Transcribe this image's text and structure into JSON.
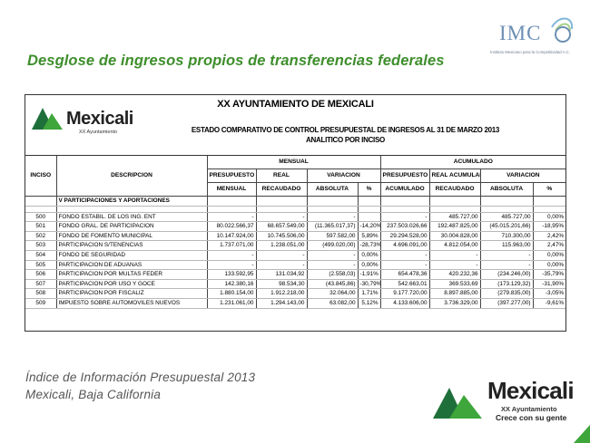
{
  "slide": {
    "title": "Desglose de ingresos propios de transferencias federales",
    "footer_line1": "Índice de Información Presupuestal 2013",
    "footer_line2": "Mexicali, Baja California"
  },
  "imco_logo": {
    "name": "IMC",
    "tagline": "Instituto Mexicano para la Competitividad A.C."
  },
  "mexicali_logo": {
    "name": "Mexicali",
    "subtitle": "XX Ayuntamiento",
    "slogan": "Crece con su gente"
  },
  "document": {
    "title": "XX AYUNTAMIENTO DE MEXICALI",
    "logo_name": "Mexicali",
    "logo_sub": "XX Ayuntamiento",
    "subtitle1": "ESTADO COMPARATIVO DE CONTROL PRESUPUESTAL DE INGRESOS AL 31 DE MARZO 2013",
    "subtitle2": "ANALITICO POR INCISO"
  },
  "table": {
    "header": {
      "inciso": "INCISO",
      "descripcion": "DESCRIPCION",
      "mensual": "MENSUAL",
      "acumulado": "ACUMULADO",
      "presupuesto": "PRESUPUESTO",
      "real": "REAL",
      "variacion": "VARIACION",
      "presupuesto_acum": "PRESUPUESTO",
      "real_acumulado": "REAL ACUMULADO",
      "variacion_acum": "VARIACION",
      "sub_mensual": "MENSUAL",
      "recaudado": "RECAUDADO",
      "absoluta": "ABSOLUTA",
      "pct": "%",
      "acumulado_sub": "ACUMULADO",
      "recaudado_acum": "RECAUDADO",
      "absoluta_acum": "ABSOLUTA",
      "pct_acum": "%"
    },
    "section_title": "V PARTICIPACIONES Y APORTACIONES",
    "rows": [
      {
        "inciso": "500",
        "desc": "FONDO ESTABIL. DE LOS ING. ENT",
        "pres_m": "-",
        "real_m": "-",
        "var_abs": "-",
        "var_pct": "",
        "pres_a": "-",
        "real_a": "485.727,00",
        "var_abs_a": "485.727,00",
        "var_pct_a": "0,00%"
      },
      {
        "inciso": "501",
        "desc": "FONDO GRAL. DE PARTICIPACION",
        "pres_m": "80.022.566,37",
        "real_m": "68.657.549,00",
        "var_abs": "(11.365.017,37)",
        "var_pct": "-14,20%",
        "pres_a": "237.503.026,66",
        "real_a": "192.487.825,00",
        "var_abs_a": "(45.015.201,66)",
        "var_pct_a": "-18,95%"
      },
      {
        "inciso": "502",
        "desc": "FONDO DE FOMENTO MUNICIPAL",
        "pres_m": "10.147.924,00",
        "real_m": "10.745.506,00",
        "var_abs": "597.582,00",
        "var_pct": "5,89%",
        "pres_a": "29.294.528,00",
        "real_a": "30.004.828,00",
        "var_abs_a": "710.300,00",
        "var_pct_a": "2,42%"
      },
      {
        "inciso": "503",
        "desc": "PARTICIPACION S/TENENCIAS",
        "pres_m": "1.737.071,00",
        "real_m": "1.238.051,00",
        "var_abs": "(499.020,00)",
        "var_pct": "-28,73%",
        "pres_a": "4.696.091,00",
        "real_a": "4.812.054,00",
        "var_abs_a": "115.963,00",
        "var_pct_a": "2,47%"
      },
      {
        "inciso": "504",
        "desc": "FONDO DE SEGURIDAD",
        "pres_m": "-",
        "real_m": "-",
        "var_abs": "-",
        "var_pct": "0,00%",
        "pres_a": "-",
        "real_a": "-",
        "var_abs_a": "-",
        "var_pct_a": "0,00%"
      },
      {
        "inciso": "505",
        "desc": "PARTICIPACION DE ADUANAS",
        "pres_m": "-",
        "real_m": "-",
        "var_abs": "-",
        "var_pct": "0,00%",
        "pres_a": "-",
        "real_a": "-",
        "var_abs_a": "-",
        "var_pct_a": "0,00%"
      },
      {
        "inciso": "506",
        "desc": "PARTICIPACION POR MULTAS FEDER",
        "pres_m": "133.592,95",
        "real_m": "131.034,92",
        "var_abs": "(2.558,03)",
        "var_pct": "-1,91%",
        "pres_a": "654.478,36",
        "real_a": "420.232,36",
        "var_abs_a": "(234.246,00)",
        "var_pct_a": "-35,79%"
      },
      {
        "inciso": "507",
        "desc": "PARTICIPACION POR USO Y GOCE",
        "pres_m": "142.380,16",
        "real_m": "98.534,30",
        "var_abs": "(43.845,86)",
        "var_pct": "-30,79%",
        "pres_a": "542.663,01",
        "real_a": "369.533,69",
        "var_abs_a": "(173.129,32)",
        "var_pct_a": "-31,90%"
      },
      {
        "inciso": "508",
        "desc": "PARTICIPACION POR FISCALIZ",
        "pres_m": "1.880.154,00",
        "real_m": "1.912.218,00",
        "var_abs": "32.064,00",
        "var_pct": "1,71%",
        "pres_a": "9.177.720,00",
        "real_a": "8.897.885,00",
        "var_abs_a": "(279.835,00)",
        "var_pct_a": "-3,05%"
      },
      {
        "inciso": "509",
        "desc": "IMPUESTO SOBRE AUTOMOVILES NUEVOS",
        "pres_m": "1.231.061,00",
        "real_m": "1.294.143,00",
        "var_abs": "63.082,00",
        "var_pct": "5,12%",
        "pres_a": "4.133.606,00",
        "real_a": "3.736.329,00",
        "var_abs_a": "(397.277,00)",
        "var_pct_a": "-9,61%"
      }
    ]
  },
  "colors": {
    "title_green": "#3e8e2c",
    "logo_green": "#3ea63a",
    "logo_dark_green": "#1f6f3a",
    "imco_blue": "#6c8fb4"
  }
}
